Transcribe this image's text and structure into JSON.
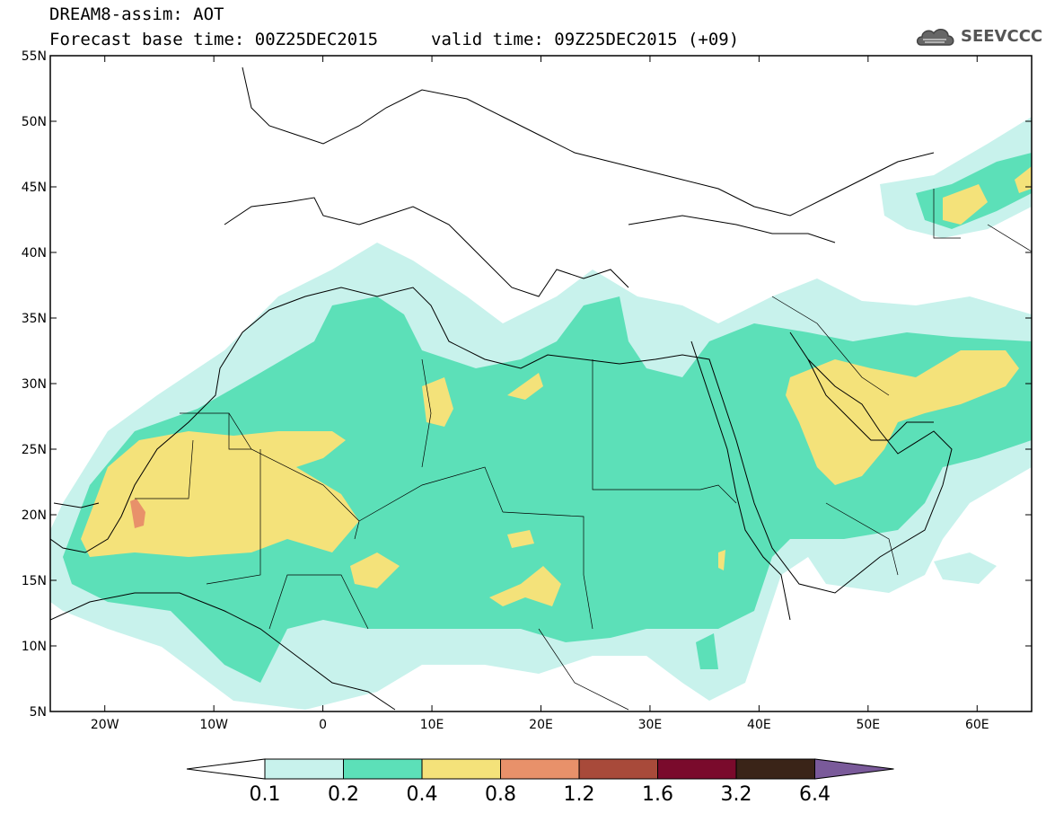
{
  "title": {
    "line1": "DREAM8-assim: AOT",
    "line2": "Forecast base time: 00Z25DEC2015",
    "valid": "valid time: 09Z25DEC2015 (+09)"
  },
  "logo": {
    "text": "SEEVCCC",
    "icon": "cloud-logo-icon"
  },
  "map": {
    "lon_range": [
      -25,
      65
    ],
    "lat_range": [
      5,
      55
    ],
    "lat_ticks": [
      {
        "value": 55,
        "label": "55N"
      },
      {
        "value": 50,
        "label": "50N"
      },
      {
        "value": 45,
        "label": "45N"
      },
      {
        "value": 40,
        "label": "40N"
      },
      {
        "value": 35,
        "label": "35N"
      },
      {
        "value": 30,
        "label": "30N"
      },
      {
        "value": 25,
        "label": "25N"
      },
      {
        "value": 20,
        "label": "20N"
      },
      {
        "value": 15,
        "label": "15N"
      },
      {
        "value": 10,
        "label": "10N"
      },
      {
        "value": 5,
        "label": "5N"
      }
    ],
    "lon_ticks": [
      {
        "value": -20,
        "label": "20W"
      },
      {
        "value": -10,
        "label": "10W"
      },
      {
        "value": 0,
        "label": "0"
      },
      {
        "value": 10,
        "label": "10E"
      },
      {
        "value": 20,
        "label": "20E"
      },
      {
        "value": 30,
        "label": "30E"
      },
      {
        "value": 40,
        "label": "40E"
      },
      {
        "value": 50,
        "label": "50E"
      },
      {
        "value": 60,
        "label": "60E"
      }
    ],
    "coastline_color": "#000000"
  },
  "colorbar": {
    "thresholds": [
      "0.1",
      "0.2",
      "0.4",
      "0.8",
      "1.2",
      "1.6",
      "3.2",
      "6.4"
    ],
    "colors": [
      "#ffffff",
      "#c8f2ec",
      "#5ce0b8",
      "#f4e27a",
      "#e8916a",
      "#a84a3a",
      "#7a0a2c",
      "#3a2418",
      "#7a5a9a"
    ]
  }
}
